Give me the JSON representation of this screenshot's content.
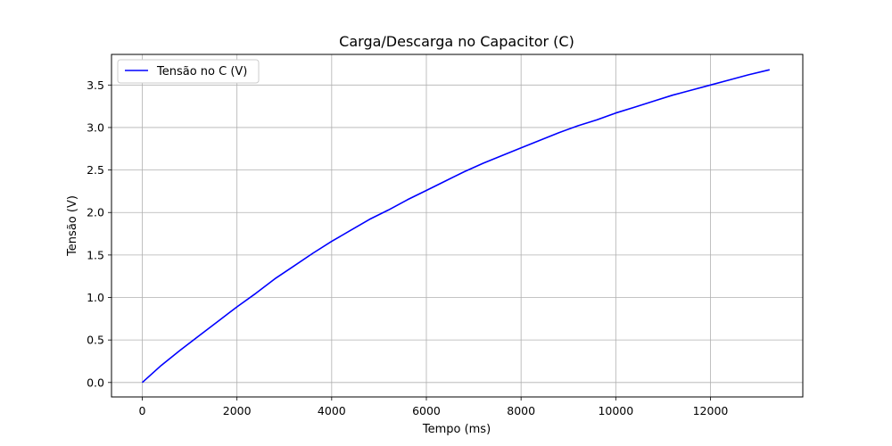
{
  "chart_data": {
    "type": "line",
    "title": "Carga/Descarga no Capacitor (C)",
    "xlabel": "Tempo (ms)",
    "ylabel": "Tensão (V)",
    "xlim": [
      -650,
      13950
    ],
    "ylim": [
      -0.17,
      3.86
    ],
    "xticks": [
      0,
      2000,
      4000,
      6000,
      8000,
      10000,
      12000
    ],
    "xtick_labels": [
      "0",
      "2000",
      "4000",
      "6000",
      "8000",
      "10000",
      "12000"
    ],
    "yticks": [
      0.0,
      0.5,
      1.0,
      1.5,
      2.0,
      2.5,
      3.0,
      3.5
    ],
    "ytick_labels": [
      "0.0",
      "0.5",
      "1.0",
      "1.5",
      "2.0",
      "2.5",
      "3.0",
      "3.5"
    ],
    "grid": true,
    "legend_position": "top-left",
    "series": [
      {
        "name": "Tensão no C (V)",
        "color": "#0000ff",
        "x": [
          0,
          400,
          800,
          1200,
          1600,
          2000,
          2400,
          2800,
          3200,
          3600,
          4000,
          4400,
          4800,
          5200,
          5600,
          6000,
          6400,
          6800,
          7200,
          7600,
          8000,
          8400,
          8800,
          9200,
          9600,
          10000,
          10400,
          10800,
          11200,
          11600,
          12000,
          12400,
          12800,
          13250
        ],
        "y": [
          0.0,
          0.2,
          0.38,
          0.55,
          0.72,
          0.89,
          1.05,
          1.22,
          1.37,
          1.52,
          1.66,
          1.79,
          1.92,
          2.03,
          2.15,
          2.26,
          2.37,
          2.48,
          2.58,
          2.67,
          2.76,
          2.85,
          2.94,
          3.02,
          3.09,
          3.17,
          3.24,
          3.31,
          3.38,
          3.44,
          3.5,
          3.56,
          3.62,
          3.68
        ]
      }
    ]
  }
}
